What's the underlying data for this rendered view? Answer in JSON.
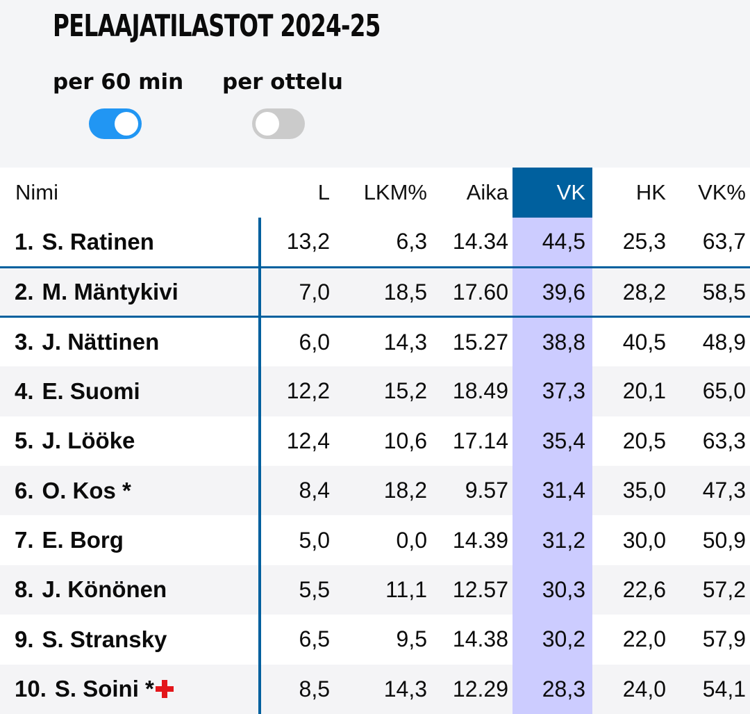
{
  "header": {
    "title": "PELAAJATILASTOT 2024-25"
  },
  "toggles": [
    {
      "label": "per 60 min",
      "state": "on"
    },
    {
      "label": "per ottelu",
      "state": "off"
    }
  ],
  "colors": {
    "accent_blue": "#00609e",
    "toggle_on": "#2196f3",
    "toggle_off": "#cbcbcb",
    "highlight_column": "#ccccff",
    "injury_red": "#e3161b"
  },
  "table": {
    "columns": [
      "Nimi",
      "L",
      "LKM%",
      "Aika",
      "VK",
      "HK",
      "VK%"
    ],
    "sorted_column": "VK",
    "rows": [
      {
        "rank": "1.",
        "name": "S. Ratinen",
        "marker": "",
        "injury": false,
        "L": "13,2",
        "LKM": "6,3",
        "Aika": "14.34",
        "VK": "44,5",
        "HK": "25,3",
        "VKP": "63,7"
      },
      {
        "rank": "2.",
        "name": "M. Mäntykivi",
        "marker": "",
        "injury": false,
        "L": "7,0",
        "LKM": "18,5",
        "Aika": "17.60",
        "VK": "39,6",
        "HK": "28,2",
        "VKP": "58,5"
      },
      {
        "rank": "3.",
        "name": "J. Nättinen",
        "marker": "",
        "injury": false,
        "L": "6,0",
        "LKM": "14,3",
        "Aika": "15.27",
        "VK": "38,8",
        "HK": "40,5",
        "VKP": "48,9"
      },
      {
        "rank": "4.",
        "name": "E. Suomi",
        "marker": "",
        "injury": false,
        "L": "12,2",
        "LKM": "15,2",
        "Aika": "18.49",
        "VK": "37,3",
        "HK": "20,1",
        "VKP": "65,0"
      },
      {
        "rank": "5.",
        "name": "J. Lööke",
        "marker": "",
        "injury": false,
        "L": "12,4",
        "LKM": "10,6",
        "Aika": "17.14",
        "VK": "35,4",
        "HK": "20,5",
        "VKP": "63,3"
      },
      {
        "rank": "6.",
        "name": "O. Kos",
        "marker": " *",
        "injury": false,
        "L": "8,4",
        "LKM": "18,2",
        "Aika": "9.57",
        "VK": "31,4",
        "HK": "35,0",
        "VKP": "47,3"
      },
      {
        "rank": "7.",
        "name": "E. Borg",
        "marker": "",
        "injury": false,
        "L": "5,0",
        "LKM": "0,0",
        "Aika": "14.39",
        "VK": "31,2",
        "HK": "30,0",
        "VKP": "50,9"
      },
      {
        "rank": "8.",
        "name": "J. Könönen",
        "marker": "",
        "injury": false,
        "L": "5,5",
        "LKM": "11,1",
        "Aika": "12.57",
        "VK": "30,3",
        "HK": "22,6",
        "VKP": "57,2"
      },
      {
        "rank": "9.",
        "name": "S. Stransky",
        "marker": "",
        "injury": false,
        "L": "6,5",
        "LKM": "9,5",
        "Aika": "14.38",
        "VK": "30,2",
        "HK": "22,0",
        "VKP": "57,9"
      },
      {
        "rank": "10.",
        "name": "S. Soini",
        "marker": " *",
        "injury": true,
        "L": "8,5",
        "LKM": "14,3",
        "Aika": "12.29",
        "VK": "28,3",
        "HK": "24,0",
        "VKP": "54,1"
      }
    ]
  }
}
